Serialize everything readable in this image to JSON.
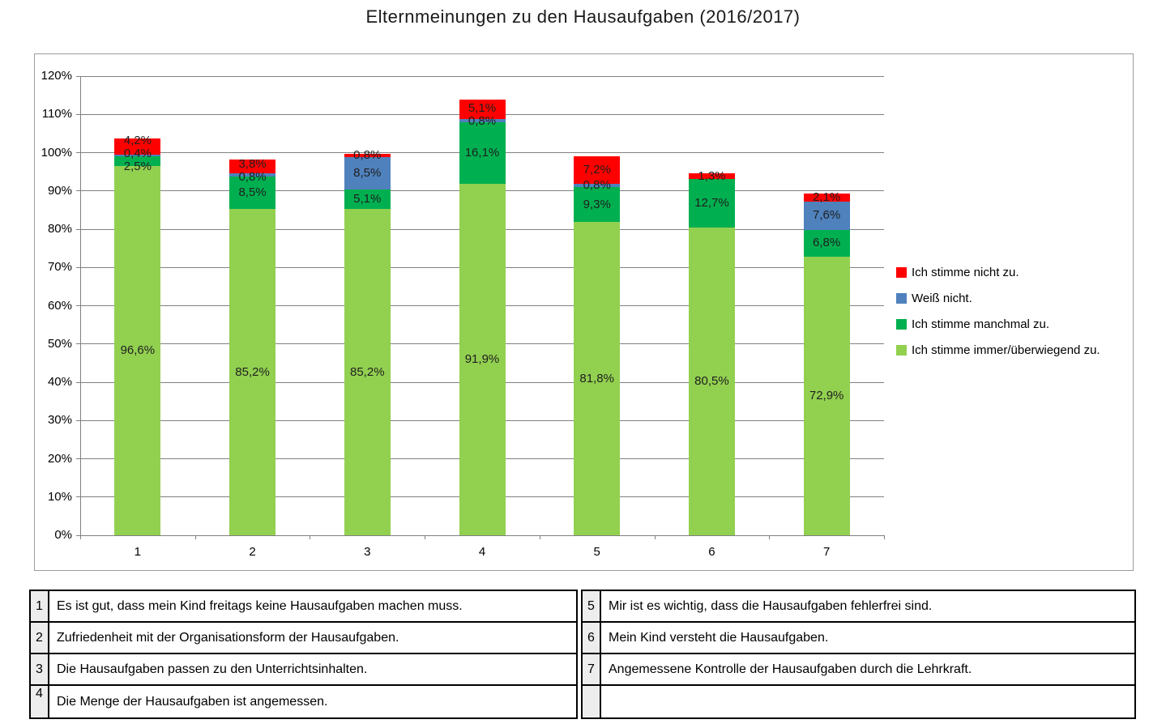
{
  "title": "Elternmeinungen zu den Hausaufgaben (2016/2017)",
  "chart_data": {
    "type": "bar",
    "stacked": true,
    "title": "Elternmeinungen zu den Hausaufgaben (2016/2017)",
    "categories": [
      "1",
      "2",
      "3",
      "4",
      "5",
      "6",
      "7"
    ],
    "series": [
      {
        "name": "Ich stimme immer/überwiegend zu.",
        "color": "#92D050",
        "values": [
          96.6,
          85.2,
          85.2,
          91.9,
          81.8,
          80.5,
          72.9
        ]
      },
      {
        "name": "Ich stimme manchmal zu.",
        "color": "#00B050",
        "values": [
          2.5,
          8.5,
          5.1,
          16.1,
          9.3,
          12.7,
          6.8
        ]
      },
      {
        "name": "Weiß nicht.",
        "color": "#4F81BD",
        "values": [
          0.4,
          0.8,
          8.5,
          0.8,
          0.8,
          0,
          7.6
        ]
      },
      {
        "name": "Ich stimme nicht zu.",
        "color": "#FF0000",
        "values": [
          4.2,
          3.8,
          0.8,
          5.1,
          7.2,
          1.3,
          2.1
        ]
      }
    ],
    "xlabel": "",
    "ylabel": "",
    "ylim": [
      0,
      120
    ],
    "ytick_step": 10,
    "ytick_suffix": "%",
    "grid": "horizontal",
    "legend_position": "right",
    "data_label_format": "german-decimal-percent"
  },
  "legend": {
    "entries": [
      {
        "label": "Ich stimme nicht zu.",
        "color": "#FF0000"
      },
      {
        "label": "Weiß nicht.",
        "color": "#4F81BD"
      },
      {
        "label": "Ich stimme manchmal zu.",
        "color": "#00B050"
      },
      {
        "label": "Ich stimme immer/überwiegend zu.",
        "color": "#92D050"
      }
    ]
  },
  "statements_table": {
    "left": [
      {
        "num": "1",
        "text": "Es ist gut, dass mein Kind freitags keine Hausaufgaben machen muss."
      },
      {
        "num": "2",
        "text": "Zufriedenheit mit der Organisationsform der Hausaufgaben."
      },
      {
        "num": "3",
        "text": "Die Hausaufgaben passen zu den Unterrichtsinhalten."
      },
      {
        "num": "4",
        "text": "Die Menge der Hausaufgaben ist angemessen."
      }
    ],
    "right": [
      {
        "num": "5",
        "text": "Mir ist es wichtig, dass die Hausaufgaben fehlerfrei sind."
      },
      {
        "num": "6",
        "text": "Mein Kind versteht die Hausaufgaben."
      },
      {
        "num": "7",
        "text": "Angemessene Kontrolle der Hausaufgaben durch die Lehrkraft."
      },
      {
        "num": "",
        "text": ""
      }
    ]
  }
}
